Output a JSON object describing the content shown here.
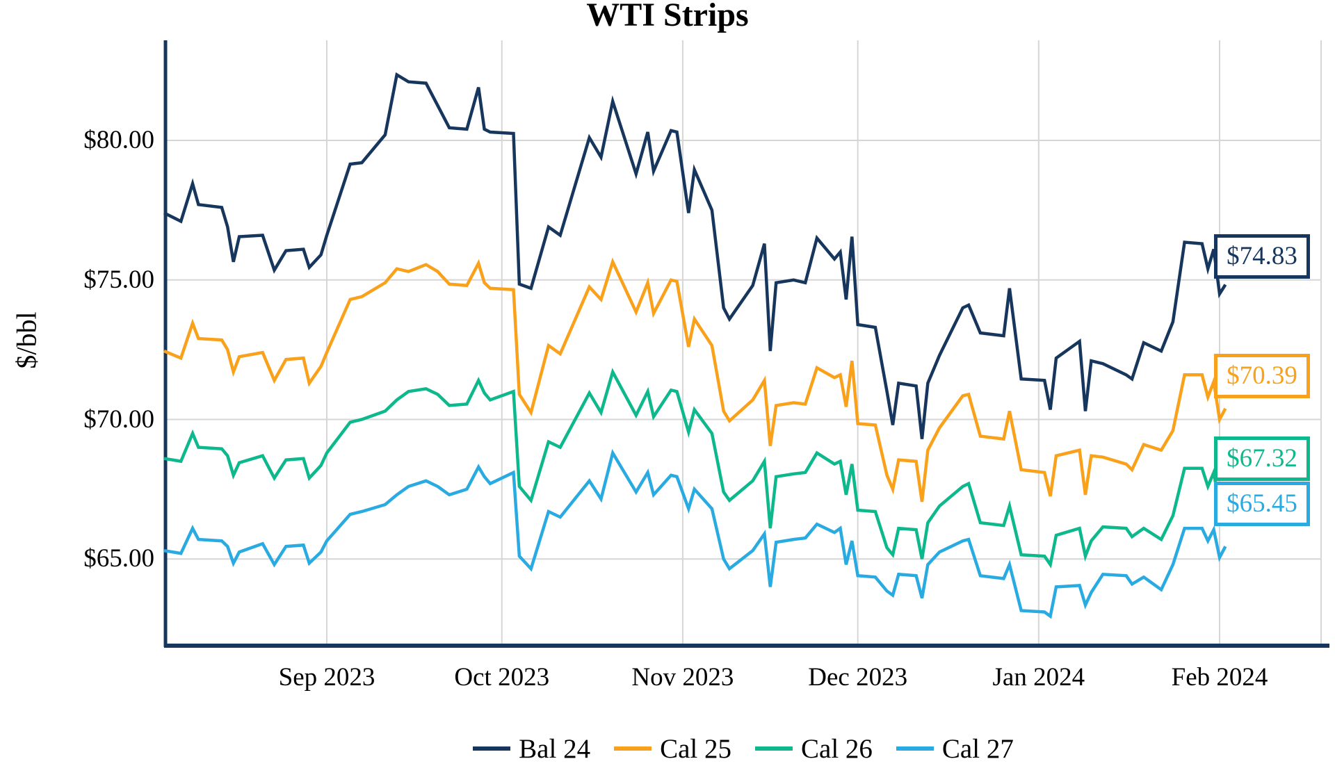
{
  "title": "WTI Strips",
  "y_axis": {
    "label": "$/bbl",
    "ticks": [
      {
        "label": "$80.00",
        "value": 80
      },
      {
        "label": "$75.00",
        "value": 75
      },
      {
        "label": "$70.00",
        "value": 70
      },
      {
        "label": "$65.00",
        "value": 65
      }
    ]
  },
  "x_axis": {
    "ticks": [
      {
        "label": "Sep 2023",
        "date": "2023-09-01"
      },
      {
        "label": "Oct 2023",
        "date": "2023-10-01"
      },
      {
        "label": "Nov 2023",
        "date": "2023-11-01"
      },
      {
        "label": "Dec 2023",
        "date": "2023-12-01"
      },
      {
        "label": "Jan 2024",
        "date": "2024-01-01"
      },
      {
        "label": "Feb 2024",
        "date": "2024-02-01"
      }
    ]
  },
  "colors": {
    "axis": "#17365D",
    "grid": "#D6D6D6",
    "background": "#FFFFFF",
    "bal24": "#17365D",
    "cal25": "#F9A11B",
    "cal26": "#0DB88C",
    "cal27": "#29ABE2"
  },
  "chart_data": {
    "type": "line",
    "title": "WTI Strips",
    "xlabel": "",
    "ylabel": "$/bbl",
    "ylim": [
      61.9,
      83.6
    ],
    "grid": true,
    "legend_position": "bottom",
    "x_dates": [
      "2023-08-04",
      "2023-08-07",
      "2023-08-09",
      "2023-08-10",
      "2023-08-14",
      "2023-08-15",
      "2023-08-16",
      "2023-08-17",
      "2023-08-21",
      "2023-08-23",
      "2023-08-25",
      "2023-08-28",
      "2023-08-29",
      "2023-08-31",
      "2023-09-01",
      "2023-09-05",
      "2023-09-07",
      "2023-09-11",
      "2023-09-13",
      "2023-09-15",
      "2023-09-18",
      "2023-09-20",
      "2023-09-22",
      "2023-09-25",
      "2023-09-27",
      "2023-09-28",
      "2023-09-29",
      "2023-10-03",
      "2023-10-04",
      "2023-10-06",
      "2023-10-09",
      "2023-10-11",
      "2023-10-16",
      "2023-10-18",
      "2023-10-20",
      "2023-10-24",
      "2023-10-26",
      "2023-10-27",
      "2023-10-30",
      "2023-10-31",
      "2023-11-02",
      "2023-11-03",
      "2023-11-06",
      "2023-11-08",
      "2023-11-09",
      "2023-11-13",
      "2023-11-15",
      "2023-11-16",
      "2023-11-17",
      "2023-11-20",
      "2023-11-22",
      "2023-11-24",
      "2023-11-27",
      "2023-11-28",
      "2023-11-29",
      "2023-11-30",
      "2023-12-01",
      "2023-12-04",
      "2023-12-06",
      "2023-12-07",
      "2023-12-08",
      "2023-12-11",
      "2023-12-12",
      "2023-12-13",
      "2023-12-15",
      "2023-12-19",
      "2023-12-20",
      "2023-12-22",
      "2023-12-26",
      "2023-12-27",
      "2023-12-29",
      "2024-01-02",
      "2024-01-03",
      "2024-01-04",
      "2024-01-08",
      "2024-01-09",
      "2024-01-10",
      "2024-01-12",
      "2024-01-16",
      "2024-01-17",
      "2024-01-19",
      "2024-01-22",
      "2024-01-24",
      "2024-01-26",
      "2024-01-29",
      "2024-01-30",
      "2024-01-31",
      "2024-02-01",
      "2024-02-02"
    ],
    "series": [
      {
        "name": "Bal 24",
        "color": "#17365D",
        "end_label": "$74.83",
        "end_value": 74.83,
        "values": [
          77.4,
          77.1,
          78.45,
          77.7,
          77.6,
          76.9,
          75.65,
          76.55,
          76.6,
          75.35,
          76.05,
          76.1,
          75.45,
          75.9,
          76.6,
          79.15,
          79.2,
          80.2,
          82.35,
          82.1,
          82.05,
          81.25,
          80.45,
          80.4,
          81.9,
          80.4,
          80.3,
          80.25,
          74.85,
          74.7,
          76.9,
          76.6,
          80.1,
          79.4,
          81.4,
          78.8,
          80.3,
          78.9,
          80.35,
          80.3,
          77.4,
          78.95,
          77.5,
          74.0,
          73.6,
          74.8,
          76.3,
          72.45,
          74.9,
          75.0,
          74.9,
          76.5,
          75.75,
          76.0,
          74.3,
          76.55,
          73.4,
          73.3,
          71.0,
          69.8,
          71.3,
          71.2,
          69.3,
          71.3,
          72.3,
          74.0,
          74.1,
          73.1,
          73.0,
          74.7,
          71.45,
          71.4,
          70.35,
          72.2,
          72.8,
          70.3,
          72.1,
          72.0,
          71.6,
          71.45,
          72.75,
          72.45,
          73.5,
          76.35,
          76.3,
          75.4,
          76.1,
          74.5,
          74.83
        ]
      },
      {
        "name": "Cal 25",
        "color": "#F9A11B",
        "end_label": "$70.39",
        "end_value": 70.39,
        "values": [
          72.45,
          72.2,
          73.45,
          72.9,
          72.85,
          72.5,
          71.7,
          72.25,
          72.4,
          71.4,
          72.15,
          72.2,
          71.3,
          71.9,
          72.4,
          74.3,
          74.4,
          74.9,
          75.4,
          75.3,
          75.55,
          75.3,
          74.85,
          74.8,
          75.6,
          74.9,
          74.7,
          74.65,
          70.9,
          70.25,
          72.65,
          72.35,
          74.75,
          74.3,
          75.65,
          73.85,
          74.9,
          73.8,
          75.0,
          74.95,
          72.6,
          73.6,
          72.65,
          70.3,
          69.95,
          70.7,
          71.4,
          69.05,
          70.5,
          70.6,
          70.55,
          71.85,
          71.5,
          71.6,
          70.45,
          72.1,
          69.85,
          69.8,
          68.0,
          67.5,
          68.55,
          68.5,
          67.05,
          68.9,
          69.7,
          70.85,
          70.9,
          69.4,
          69.3,
          70.3,
          68.2,
          68.1,
          67.25,
          68.7,
          68.9,
          67.3,
          68.7,
          68.65,
          68.4,
          68.2,
          69.1,
          68.9,
          69.6,
          71.6,
          71.6,
          70.8,
          71.35,
          70.0,
          70.39
        ]
      },
      {
        "name": "Cal 26",
        "color": "#0DB88C",
        "end_label": "$67.32",
        "end_value": 67.32,
        "values": [
          68.6,
          68.5,
          69.5,
          69.0,
          68.95,
          68.7,
          68.0,
          68.45,
          68.7,
          67.9,
          68.55,
          68.6,
          67.9,
          68.35,
          68.8,
          69.9,
          70.0,
          70.3,
          70.7,
          71.0,
          71.1,
          70.9,
          70.5,
          70.55,
          71.4,
          70.95,
          70.7,
          71.0,
          67.6,
          67.1,
          69.2,
          69.0,
          70.95,
          70.25,
          71.7,
          70.15,
          71.0,
          70.1,
          71.05,
          71.0,
          69.55,
          70.35,
          69.5,
          67.4,
          67.1,
          67.8,
          68.5,
          66.1,
          67.95,
          68.05,
          68.1,
          68.8,
          68.4,
          68.5,
          67.3,
          68.4,
          66.75,
          66.7,
          65.4,
          65.15,
          66.1,
          66.05,
          65.0,
          66.3,
          66.9,
          67.6,
          67.7,
          66.3,
          66.2,
          66.9,
          65.15,
          65.1,
          64.8,
          65.85,
          66.1,
          65.1,
          65.65,
          66.15,
          66.1,
          65.8,
          66.1,
          65.7,
          66.55,
          68.25,
          68.25,
          67.6,
          68.1,
          66.9,
          67.32
        ]
      },
      {
        "name": "Cal 27",
        "color": "#29ABE2",
        "end_label": "$65.45",
        "end_value": 65.45,
        "values": [
          65.3,
          65.2,
          66.1,
          65.7,
          65.65,
          65.45,
          64.85,
          65.25,
          65.55,
          64.8,
          65.45,
          65.5,
          64.85,
          65.25,
          65.65,
          66.6,
          66.7,
          66.95,
          67.3,
          67.6,
          67.8,
          67.6,
          67.3,
          67.5,
          68.3,
          67.95,
          67.7,
          68.1,
          65.1,
          64.65,
          66.7,
          66.5,
          67.8,
          67.15,
          68.8,
          67.4,
          68.1,
          67.3,
          68.0,
          67.95,
          66.8,
          67.5,
          66.8,
          65.0,
          64.65,
          65.3,
          65.9,
          64.0,
          65.6,
          65.7,
          65.75,
          66.25,
          65.95,
          66.1,
          64.8,
          65.65,
          64.4,
          64.35,
          63.85,
          63.7,
          64.45,
          64.4,
          63.6,
          64.8,
          65.25,
          65.65,
          65.7,
          64.4,
          64.3,
          64.8,
          63.15,
          63.1,
          62.95,
          64.0,
          64.05,
          63.35,
          63.8,
          64.45,
          64.4,
          64.1,
          64.35,
          63.9,
          64.8,
          66.1,
          66.1,
          65.65,
          66.05,
          65.05,
          65.45
        ]
      }
    ]
  }
}
